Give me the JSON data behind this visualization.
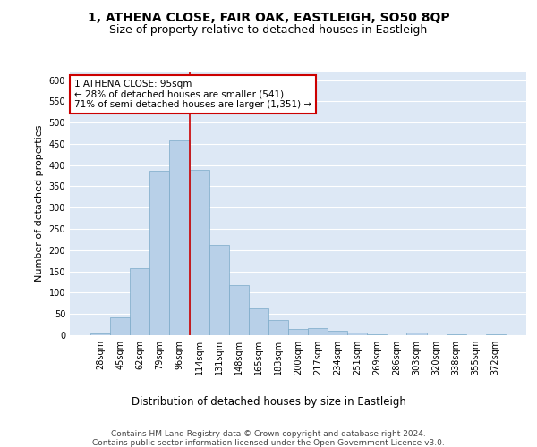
{
  "title": "1, ATHENA CLOSE, FAIR OAK, EASTLEIGH, SO50 8QP",
  "subtitle": "Size of property relative to detached houses in Eastleigh",
  "xlabel": "Distribution of detached houses by size in Eastleigh",
  "ylabel": "Number of detached properties",
  "categories": [
    "28sqm",
    "45sqm",
    "62sqm",
    "79sqm",
    "96sqm",
    "114sqm",
    "131sqm",
    "148sqm",
    "165sqm",
    "183sqm",
    "200sqm",
    "217sqm",
    "234sqm",
    "251sqm",
    "269sqm",
    "286sqm",
    "303sqm",
    "320sqm",
    "338sqm",
    "355sqm",
    "372sqm"
  ],
  "values": [
    5,
    42,
    157,
    387,
    458,
    388,
    213,
    118,
    63,
    35,
    14,
    16,
    10,
    7,
    3,
    0,
    6,
    0,
    2,
    0,
    2
  ],
  "bar_color": "#b8d0e8",
  "bar_edge_color": "#7aaac8",
  "vline_x_index": 4,
  "vline_color": "#cc0000",
  "annotation_text": "1 ATHENA CLOSE: 95sqm\n← 28% of detached houses are smaller (541)\n71% of semi-detached houses are larger (1,351) →",
  "annotation_box_color": "white",
  "annotation_box_edge": "#cc0000",
  "ylim": [
    0,
    620
  ],
  "yticks": [
    0,
    50,
    100,
    150,
    200,
    250,
    300,
    350,
    400,
    450,
    500,
    550,
    600
  ],
  "bg_color": "#dde8f5",
  "grid_color": "white",
  "footer_line1": "Contains HM Land Registry data © Crown copyright and database right 2024.",
  "footer_line2": "Contains public sector information licensed under the Open Government Licence v3.0.",
  "title_fontsize": 10,
  "subtitle_fontsize": 9,
  "xlabel_fontsize": 8.5,
  "ylabel_fontsize": 8,
  "tick_fontsize": 7,
  "footer_fontsize": 6.5,
  "annotation_fontsize": 7.5
}
